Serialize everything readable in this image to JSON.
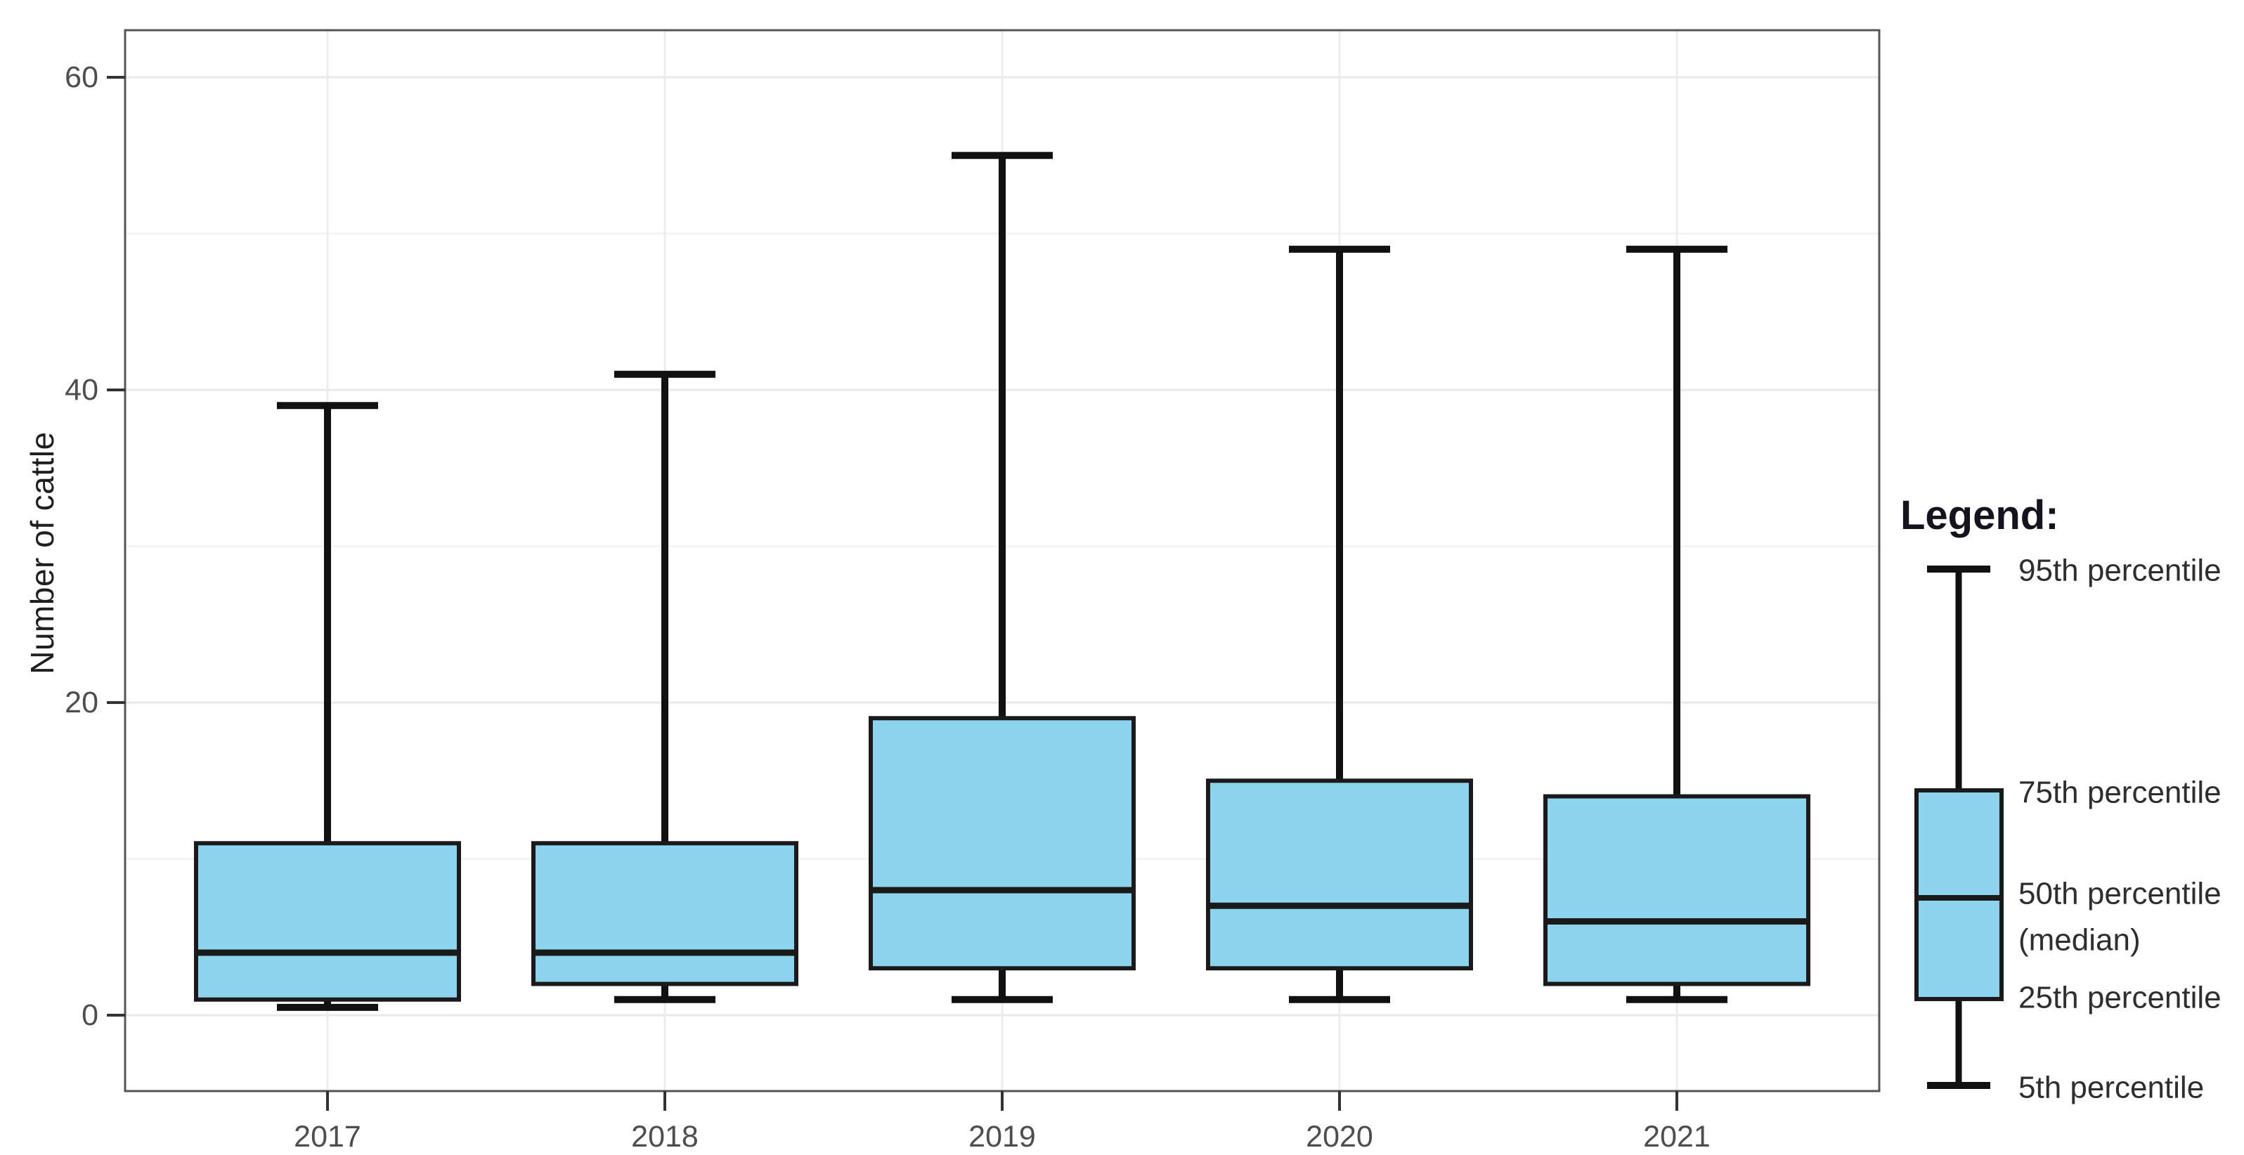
{
  "figure": {
    "background": "#ffffff"
  },
  "chart_data": {
    "type": "boxplot",
    "title": "",
    "xlabel": "",
    "ylabel": "Number of cattle",
    "categories": [
      "2017",
      "2018",
      "2019",
      "2020",
      "2021"
    ],
    "series": [
      {
        "category": "2017",
        "p5": 0.5,
        "p25": 1,
        "p50": 4,
        "p75": 11,
        "p95": 39
      },
      {
        "category": "2018",
        "p5": 1,
        "p25": 2,
        "p50": 4,
        "p75": 11,
        "p95": 41
      },
      {
        "category": "2019",
        "p5": 1,
        "p25": 3,
        "p50": 8,
        "p75": 19,
        "p95": 55
      },
      {
        "category": "2020",
        "p5": 1,
        "p25": 3,
        "p50": 7,
        "p75": 15,
        "p95": 49
      },
      {
        "category": "2021",
        "p5": 1,
        "p25": 2,
        "p50": 6,
        "p75": 14,
        "p95": 49
      }
    ],
    "whisker_definition": {
      "upper": "95th percentile",
      "lower": "5th percentile"
    },
    "y_axis": {
      "major_ticks": [
        0,
        20,
        40,
        60
      ],
      "tick_labels": [
        "0",
        "20",
        "40",
        "60"
      ],
      "minor_gridlines": [
        10,
        30,
        50
      ],
      "range": [
        -4.8,
        63
      ],
      "grid": "on"
    },
    "legend_position": "right"
  },
  "legend": {
    "title": "Legend:",
    "labels": [
      "95th percentile",
      "75th percentile",
      "50th percentile",
      "(median)",
      "25th percentile",
      "5th percentile"
    ]
  },
  "colors": {
    "box_fill": "#8CD3EE",
    "box_stroke": "#1a1a1a",
    "whisker_stroke": "#111111",
    "median_stroke": "#1a1a1a",
    "panel_border": "#555555",
    "gridline_major": "#e9e9e9",
    "gridline_minor": "#f4f4f4",
    "gridline_vertical": "#ededed",
    "tick_mark": "#333333",
    "tick_label": "#4d4d4d",
    "axis_title": "#1f1f1f",
    "legend_text": "#2e2e2e",
    "legend_title_text": "#14141f",
    "background": "#ffffff"
  }
}
